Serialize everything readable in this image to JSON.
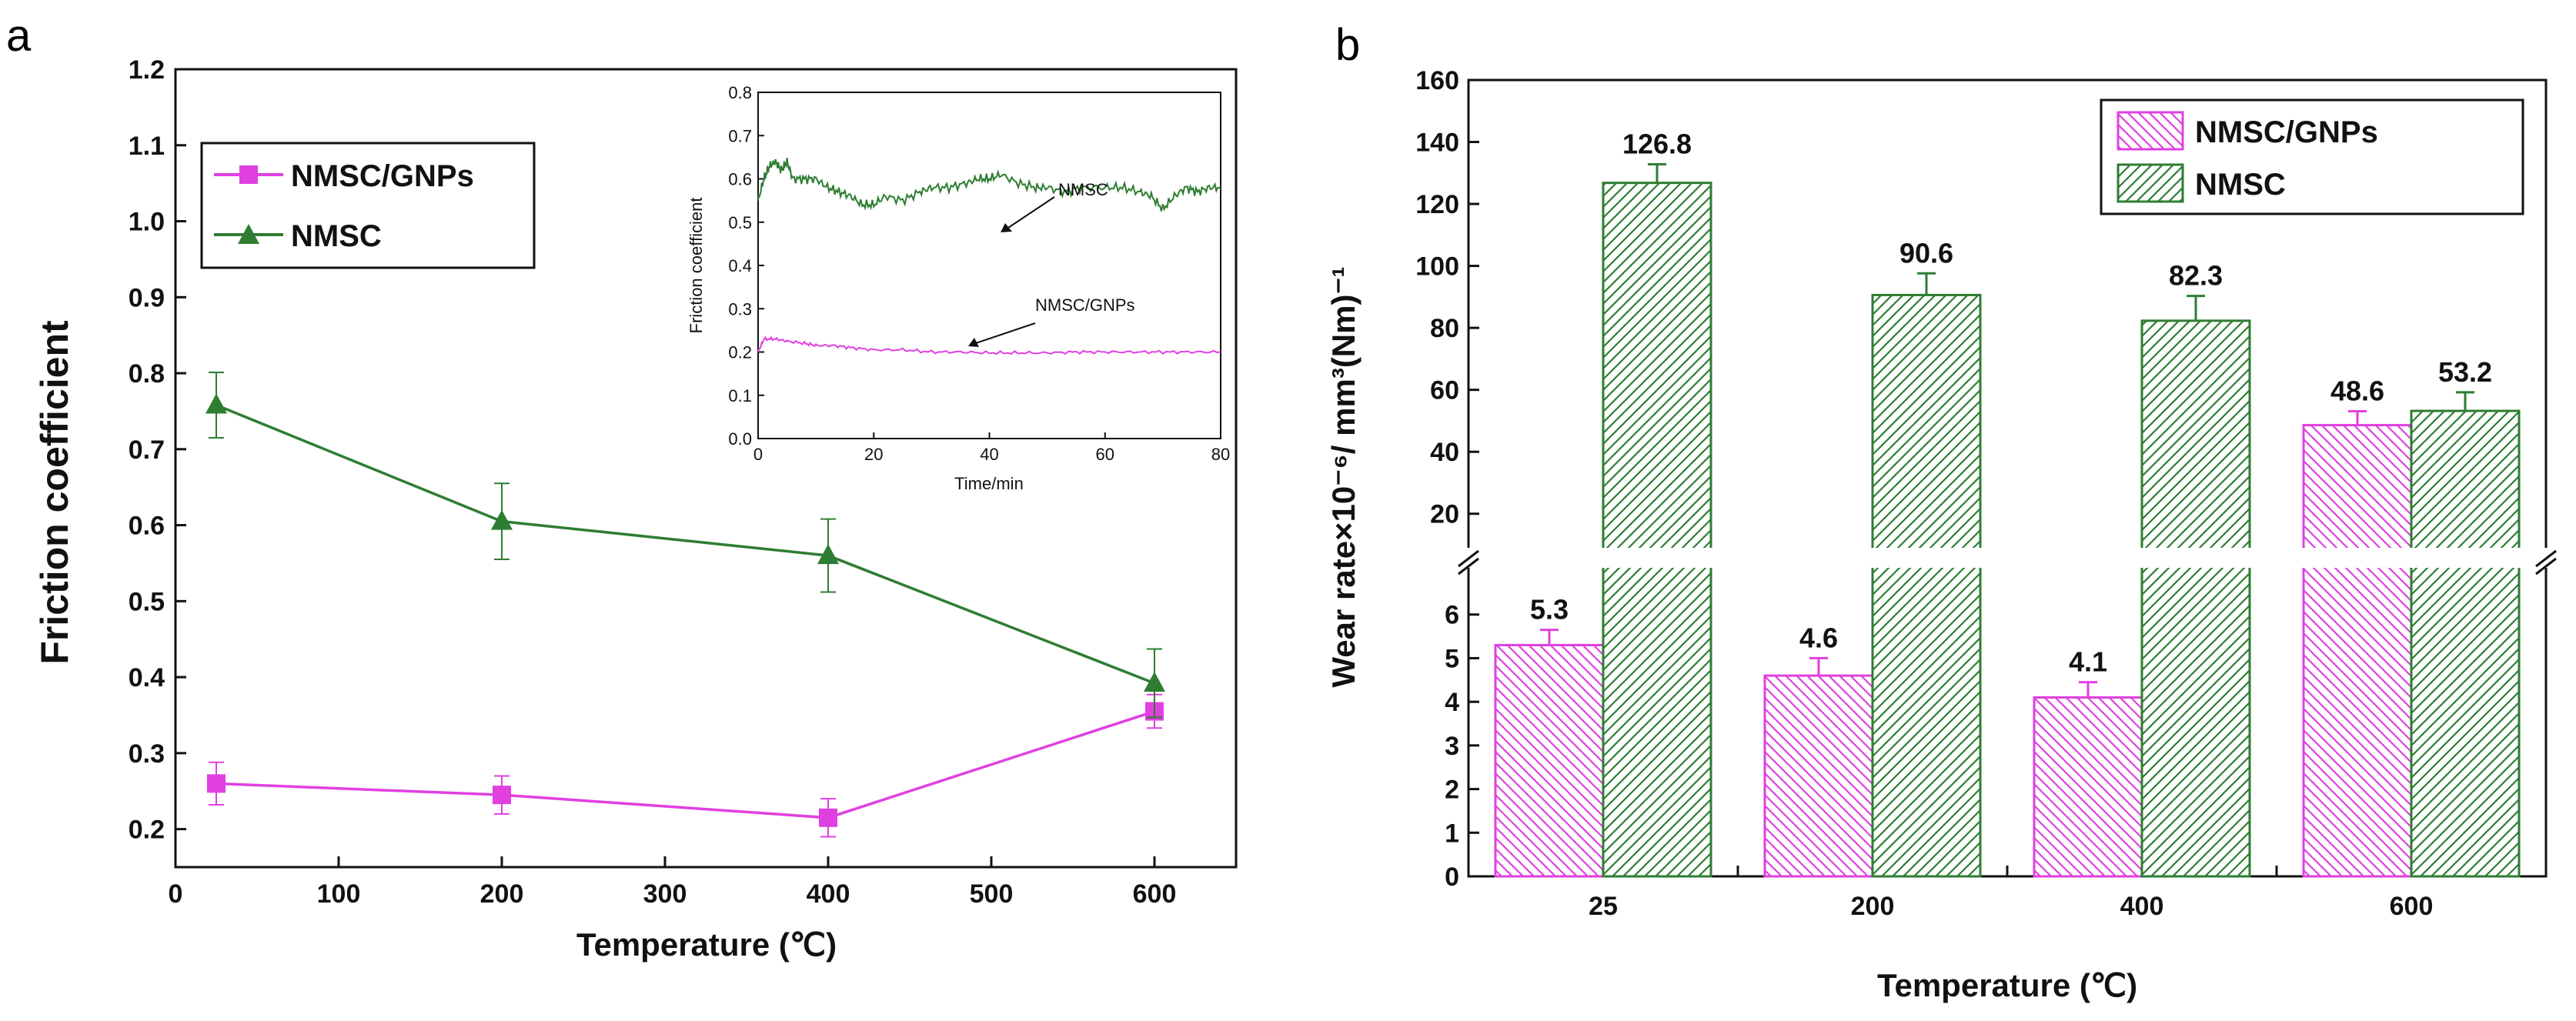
{
  "panels": {
    "a": "a",
    "b": "b"
  },
  "colors": {
    "magenta": "#e040e0",
    "green": "#2e7d32",
    "axis": "#111111"
  },
  "chart_data": [
    {
      "id": "a",
      "type": "line",
      "title": "",
      "xlabel": "Temperature (℃)",
      "ylabel": "Friction coefficient",
      "xlim": [
        0,
        650
      ],
      "ylim": [
        0.15,
        1.2
      ],
      "xticks": [
        0,
        100,
        200,
        300,
        400,
        500,
        600
      ],
      "xtick_labels": [
        "0",
        "100",
        "200",
        "300",
        "400",
        "500",
        "600"
      ],
      "yticks": [
        0.2,
        0.3,
        0.4,
        0.5,
        0.6,
        0.7,
        0.8,
        0.9,
        1.0,
        1.1,
        1.2
      ],
      "ytick_labels": [
        "0.2",
        "0.3",
        "0.4",
        "0.5",
        "0.6",
        "0.7",
        "0.8",
        "0.9",
        "1.0",
        "1.1",
        "1.2"
      ],
      "legend": "top-left",
      "series": [
        {
          "name": "NMSC/GNPs",
          "marker": "square",
          "color": "#e040e0",
          "x": [
            25,
            200,
            400,
            600
          ],
          "y": [
            0.26,
            0.245,
            0.215,
            0.355
          ],
          "err": [
            0.028,
            0.025,
            0.025,
            0.022
          ]
        },
        {
          "name": "NMSC",
          "marker": "triangle",
          "color": "#2e7d32",
          "x": [
            25,
            200,
            400,
            600
          ],
          "y": [
            0.758,
            0.605,
            0.56,
            0.392
          ],
          "err": [
            0.043,
            0.05,
            0.048,
            0.045
          ]
        }
      ],
      "inset": {
        "type": "line",
        "xlabel": "Time/min",
        "ylabel": "Friction coefficient",
        "xlim": [
          0,
          80
        ],
        "ylim": [
          0,
          0.8
        ],
        "xticks": [
          0,
          20,
          40,
          60,
          80
        ],
        "xtick_labels": [
          "0",
          "20",
          "40",
          "60",
          "80"
        ],
        "yticks": [
          0.0,
          0.1,
          0.2,
          0.3,
          0.4,
          0.5,
          0.6,
          0.7,
          0.8
        ],
        "ytick_labels": [
          "0.0",
          "0.1",
          "0.2",
          "0.3",
          "0.4",
          "0.5",
          "0.6",
          "0.7",
          "0.8"
        ],
        "annotations": [
          "NMSC",
          "NMSC/GNPs"
        ],
        "series": [
          {
            "name": "NMSC",
            "color": "#2e7d32",
            "x": [
              0,
              1,
              2,
              3,
              4,
              5,
              6,
              8,
              10,
              12,
              14,
              16,
              18,
              20,
              22,
              25,
              28,
              30,
              33,
              36,
              38,
              40,
              42,
              45,
              48,
              50,
              53,
              56,
              60,
              63,
              66,
              68,
              70,
              72,
              74,
              76,
              78,
              80
            ],
            "y": [
              0.55,
              0.6,
              0.63,
              0.64,
              0.62,
              0.64,
              0.6,
              0.6,
              0.6,
              0.58,
              0.57,
              0.56,
              0.54,
              0.54,
              0.56,
              0.55,
              0.57,
              0.58,
              0.58,
              0.59,
              0.6,
              0.6,
              0.61,
              0.59,
              0.58,
              0.58,
              0.57,
              0.58,
              0.58,
              0.58,
              0.57,
              0.56,
              0.53,
              0.56,
              0.58,
              0.57,
              0.58,
              0.58
            ]
          },
          {
            "name": "NMSC/GNPs",
            "color": "#e040e0",
            "x": [
              0,
              1,
              3,
              5,
              8,
              10,
              13,
              16,
              20,
              25,
              30,
              35,
              40,
              45,
              50,
              55,
              60,
              65,
              70,
              75,
              80
            ],
            "y": [
              0.2,
              0.23,
              0.23,
              0.225,
              0.22,
              0.215,
              0.215,
              0.21,
              0.205,
              0.205,
              0.2,
              0.2,
              0.198,
              0.198,
              0.198,
              0.2,
              0.2,
              0.2,
              0.2,
              0.2,
              0.2
            ]
          }
        ]
      }
    },
    {
      "id": "b",
      "type": "bar",
      "title": "",
      "xlabel": "Temperature (℃)",
      "ylabel": "Wear rate×10⁻⁶/ mm³(Nm)⁻¹",
      "categories": [
        "25",
        "200",
        "400",
        "600"
      ],
      "axis_break": {
        "lower": [
          0,
          7
        ],
        "upper": [
          10,
          160
        ]
      },
      "lower_yticks": [
        0,
        1,
        2,
        3,
        4,
        5,
        6
      ],
      "lower_ytick_labels": [
        "0",
        "1",
        "2",
        "3",
        "4",
        "5",
        "6"
      ],
      "upper_yticks": [
        20,
        40,
        60,
        80,
        100,
        120,
        140,
        160
      ],
      "upper_ytick_labels": [
        "20",
        "40",
        "60",
        "80",
        "100",
        "120",
        "140",
        "160"
      ],
      "legend": "top-right",
      "series": [
        {
          "name": "NMSC/GNPs",
          "color": "#e040e0",
          "hatch": "backslash",
          "values": [
            5.3,
            4.6,
            4.1,
            48.6
          ],
          "err": [
            0.35,
            0.4,
            0.35,
            4.5
          ],
          "value_labels": [
            "5.3",
            "4.6",
            "4.1",
            "48.6"
          ]
        },
        {
          "name": "NMSC",
          "color": "#2e7d32",
          "hatch": "slash",
          "values": [
            126.8,
            90.6,
            82.3,
            53.2
          ],
          "err": [
            6.0,
            7.0,
            8.0,
            6.0
          ],
          "value_labels": [
            "126.8",
            "90.6",
            "82.3",
            "53.2"
          ]
        }
      ]
    }
  ]
}
